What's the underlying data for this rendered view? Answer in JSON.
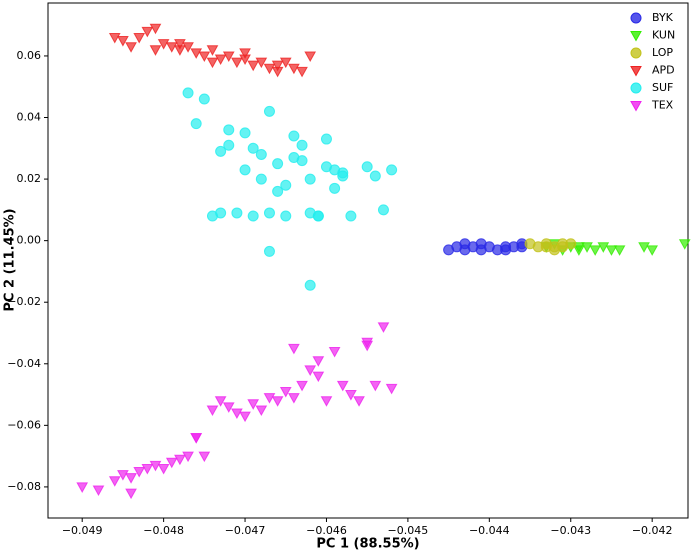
{
  "chart_data": {
    "type": "scatter",
    "xlabel": "PC 1 (88.55%)",
    "ylabel": "PC 2 (11.45%)",
    "xlim": [
      -0.04942,
      -0.04156
    ],
    "ylim": [
      -0.0901,
      0.0772
    ],
    "xticks": [
      {
        "value": -0.049,
        "label": "−0.049"
      },
      {
        "value": -0.048,
        "label": "−0.048"
      },
      {
        "value": -0.047,
        "label": "−0.047"
      },
      {
        "value": -0.046,
        "label": "−0.046"
      },
      {
        "value": -0.045,
        "label": "−0.045"
      },
      {
        "value": -0.044,
        "label": "−0.044"
      },
      {
        "value": -0.043,
        "label": "−0.043"
      },
      {
        "value": -0.042,
        "label": "−0.042"
      }
    ],
    "yticks": [
      {
        "value": -0.08,
        "label": "−0.08"
      },
      {
        "value": -0.06,
        "label": "−0.06"
      },
      {
        "value": -0.04,
        "label": "−0.04"
      },
      {
        "value": -0.02,
        "label": "−0.02"
      },
      {
        "value": 0,
        "label": "0.00"
      },
      0.02,
      0.04,
      0.06
    ],
    "legend": "upper right",
    "series": [
      {
        "name": "BYK",
        "color": "#2a2ae6",
        "marker": "circle",
        "x": [
          -0.0445,
          -0.0444,
          -0.0443,
          -0.0442,
          -0.0441,
          -0.044,
          -0.0439,
          -0.0438,
          -0.0437,
          -0.0436,
          -0.0443,
          -0.0441,
          -0.0438,
          -0.0436
        ],
        "values": [
          -0.003,
          -0.002,
          -0.003,
          -0.002,
          -0.003,
          -0.002,
          -0.003,
          -0.002,
          -0.002,
          -0.002,
          -0.001,
          -0.001,
          -0.003,
          -0.001
        ]
      },
      {
        "name": "KUN",
        "color": "#33ee00",
        "marker": "triangle-down",
        "x": [
          -0.0433,
          -0.0431,
          -0.043,
          -0.0429,
          -0.0428,
          -0.0427,
          -0.0426,
          -0.0425,
          -0.0424,
          -0.0421,
          -0.042,
          -0.0416,
          -0.0432,
          -0.0429
        ],
        "values": [
          -0.002,
          -0.003,
          -0.002,
          -0.003,
          -0.002,
          -0.003,
          -0.002,
          -0.003,
          -0.003,
          -0.002,
          -0.003,
          -0.001,
          -0.001,
          -0.002
        ]
      },
      {
        "name": "LOP",
        "color": "#c2c21a",
        "marker": "circle",
        "x": [
          -0.0435,
          -0.0434,
          -0.0433,
          -0.0432,
          -0.0431,
          -0.0431,
          -0.043,
          -0.0433,
          -0.0432
        ],
        "values": [
          -0.001,
          -0.002,
          -0.001,
          -0.002,
          -0.001,
          -0.002,
          -0.001,
          -0.002,
          -0.003
        ]
      },
      {
        "name": "APD",
        "color": "#ee2222",
        "marker": "triangle-down",
        "x": [
          -0.0486,
          -0.0485,
          -0.0483,
          -0.0482,
          -0.0481,
          -0.048,
          -0.0479,
          -0.0478,
          -0.0477,
          -0.0476,
          -0.0475,
          -0.0474,
          -0.0473,
          -0.0472,
          -0.0471,
          -0.047,
          -0.0469,
          -0.0468,
          -0.0467,
          -0.0466,
          -0.0465,
          -0.0464,
          -0.0463,
          -0.0462,
          -0.0481,
          -0.0478,
          -0.0474,
          -0.047,
          -0.0466,
          -0.0484
        ],
        "values": [
          0.066,
          0.065,
          0.066,
          0.068,
          0.069,
          0.064,
          0.063,
          0.062,
          0.063,
          0.061,
          0.06,
          0.062,
          0.059,
          0.06,
          0.058,
          0.059,
          0.057,
          0.058,
          0.056,
          0.057,
          0.058,
          0.056,
          0.055,
          0.06,
          0.062,
          0.064,
          0.058,
          0.061,
          0.055,
          0.063
        ]
      },
      {
        "name": "SUF",
        "color": "#22eeee",
        "marker": "circle",
        "x": [
          -0.0477,
          -0.0476,
          -0.0475,
          -0.0474,
          -0.0473,
          -0.0472,
          -0.0471,
          -0.047,
          -0.0469,
          -0.0468,
          -0.0467,
          -0.0466,
          -0.0465,
          -0.0464,
          -0.0463,
          -0.0462,
          -0.0461,
          -0.046,
          -0.0459,
          -0.0458,
          -0.0457,
          -0.0455,
          -0.0453,
          -0.0452,
          -0.0473,
          -0.047,
          -0.0468,
          -0.0466,
          -0.0464,
          -0.0462,
          -0.046,
          -0.0458,
          -0.0472,
          -0.0469,
          -0.0467,
          -0.0465,
          -0.0463,
          -0.0461,
          -0.0459,
          -0.0454,
          -0.0462,
          -0.0467
        ],
        "values": [
          0.048,
          0.038,
          0.046,
          0.008,
          0.029,
          0.031,
          0.009,
          0.035,
          0.008,
          0.028,
          0.042,
          0.025,
          0.008,
          0.027,
          0.031,
          0.02,
          0.008,
          0.024,
          0.017,
          0.022,
          0.008,
          0.024,
          0.01,
          0.023,
          0.009,
          0.023,
          0.02,
          0.016,
          0.034,
          0.009,
          0.033,
          0.021,
          0.036,
          0.03,
          0.009,
          0.018,
          0.026,
          0.008,
          0.023,
          0.021,
          -0.0145,
          -0.0035
        ]
      },
      {
        "name": "TEX",
        "color": "#ee22ee",
        "marker": "triangle-down",
        "x": [
          -0.049,
          -0.0488,
          -0.0486,
          -0.0485,
          -0.0484,
          -0.0483,
          -0.0482,
          -0.0481,
          -0.048,
          -0.0479,
          -0.0478,
          -0.0477,
          -0.0476,
          -0.0475,
          -0.0474,
          -0.0473,
          -0.0472,
          -0.0471,
          -0.047,
          -0.0469,
          -0.0468,
          -0.0467,
          -0.0466,
          -0.0465,
          -0.0464,
          -0.0463,
          -0.0462,
          -0.0461,
          -0.046,
          -0.0459,
          -0.0458,
          -0.0457,
          -0.0456,
          -0.0455,
          -0.0454,
          -0.0453,
          -0.0452,
          -0.0455,
          -0.0461,
          -0.0464,
          -0.0476,
          -0.0484
        ],
        "values": [
          -0.08,
          -0.081,
          -0.078,
          -0.076,
          -0.077,
          -0.075,
          -0.074,
          -0.073,
          -0.074,
          -0.072,
          -0.071,
          -0.07,
          -0.064,
          -0.07,
          -0.055,
          -0.052,
          -0.054,
          -0.056,
          -0.057,
          -0.053,
          -0.055,
          -0.051,
          -0.052,
          -0.049,
          -0.051,
          -0.047,
          -0.042,
          -0.044,
          -0.052,
          -0.036,
          -0.047,
          -0.05,
          -0.052,
          -0.033,
          -0.047,
          -0.028,
          -0.048,
          -0.034,
          -0.039,
          -0.035,
          -0.064,
          -0.082
        ]
      }
    ]
  }
}
